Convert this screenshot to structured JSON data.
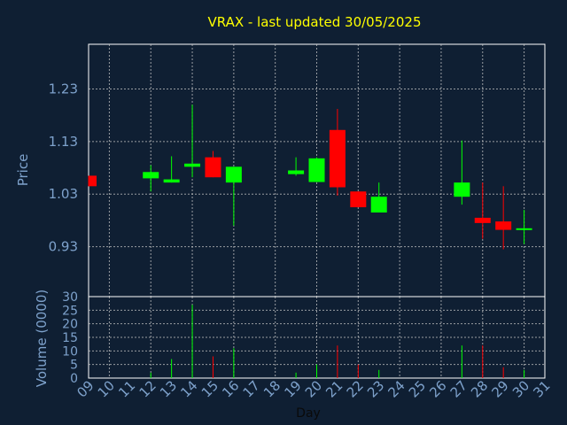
{
  "chart_data": [
    {
      "type": "candlestick",
      "title": "VRAX - last updated 30/05/2025",
      "ylabel": "Price",
      "ylim": [
        0.835,
        1.315
      ],
      "yticks": [
        0.93,
        1.03,
        1.13,
        1.23
      ],
      "ytick_labels": [
        "0.93",
        "1.03",
        "1.13",
        "1.23"
      ],
      "grid": true,
      "up_color": "#00ff00",
      "down_color": "#ff0000",
      "candles": [
        {
          "day": 9,
          "open": 1.065,
          "high": 1.065,
          "low": 1.045,
          "close": 1.045
        },
        {
          "day": 12,
          "open": 1.06,
          "high": 1.085,
          "low": 1.035,
          "close": 1.072
        },
        {
          "day": 13,
          "open": 1.052,
          "high": 1.102,
          "low": 1.052,
          "close": 1.058
        },
        {
          "day": 14,
          "open": 1.082,
          "high": 1.2,
          "low": 1.062,
          "close": 1.088
        },
        {
          "day": 15,
          "open": 1.1,
          "high": 1.112,
          "low": 1.062,
          "close": 1.062
        },
        {
          "day": 16,
          "open": 1.052,
          "high": 1.082,
          "low": 0.97,
          "close": 1.082
        },
        {
          "day": 19,
          "open": 1.068,
          "high": 1.1,
          "low": 1.065,
          "close": 1.075
        },
        {
          "day": 20,
          "open": 1.053,
          "high": 1.1,
          "low": 1.053,
          "close": 1.098
        },
        {
          "day": 21,
          "open": 1.152,
          "high": 1.192,
          "low": 1.027,
          "close": 1.043
        },
        {
          "day": 22,
          "open": 1.035,
          "high": 1.035,
          "low": 1.005,
          "close": 1.005
        },
        {
          "day": 23,
          "open": 0.995,
          "high": 1.052,
          "low": 0.995,
          "close": 1.025
        },
        {
          "day": 27,
          "open": 1.025,
          "high": 1.132,
          "low": 1.01,
          "close": 1.052
        },
        {
          "day": 28,
          "open": 0.985,
          "high": 1.052,
          "low": 0.945,
          "close": 0.975
        },
        {
          "day": 29,
          "open": 0.978,
          "high": 1.045,
          "low": 0.925,
          "close": 0.962
        },
        {
          "day": 30,
          "open": 0.962,
          "high": 1.0,
          "low": 0.935,
          "close": 0.965
        }
      ]
    },
    {
      "type": "bar",
      "ylabel": "Volume (0000)",
      "ylim": [
        0,
        30
      ],
      "yticks": [
        0,
        5,
        10,
        15,
        20,
        25,
        30
      ],
      "ytick_labels": [
        "0",
        "5",
        "10",
        "15",
        "20",
        "25",
        "30"
      ],
      "grid": true,
      "bars": [
        {
          "day": 12,
          "value": 2,
          "direction": "up"
        },
        {
          "day": 13,
          "value": 7,
          "direction": "up"
        },
        {
          "day": 14,
          "value": 27,
          "direction": "up"
        },
        {
          "day": 15,
          "value": 8,
          "direction": "down"
        },
        {
          "day": 16,
          "value": 11,
          "direction": "up"
        },
        {
          "day": 19,
          "value": 2,
          "direction": "up"
        },
        {
          "day": 20,
          "value": 5,
          "direction": "up"
        },
        {
          "day": 21,
          "value": 12,
          "direction": "down"
        },
        {
          "day": 22,
          "value": 5,
          "direction": "down"
        },
        {
          "day": 23,
          "value": 3,
          "direction": "up"
        },
        {
          "day": 27,
          "value": 12,
          "direction": "up"
        },
        {
          "day": 28,
          "value": 12,
          "direction": "down"
        },
        {
          "day": 29,
          "value": 4,
          "direction": "down"
        },
        {
          "day": 30,
          "value": 3,
          "direction": "up"
        }
      ]
    }
  ],
  "x_axis": {
    "label": "Day",
    "range": [
      9,
      31
    ],
    "ticks": [
      "09",
      "10",
      "11",
      "12",
      "13",
      "14",
      "15",
      "16",
      "17",
      "18",
      "19",
      "20",
      "21",
      "22",
      "23",
      "24",
      "25",
      "26",
      "27",
      "28",
      "29",
      "30",
      "31"
    ]
  },
  "colors": {
    "background": "#0f1f33",
    "title": "#ffff00",
    "axis_text": "#7ea2cc",
    "grid": "#c8c8c8",
    "frame": "#ffffff"
  }
}
